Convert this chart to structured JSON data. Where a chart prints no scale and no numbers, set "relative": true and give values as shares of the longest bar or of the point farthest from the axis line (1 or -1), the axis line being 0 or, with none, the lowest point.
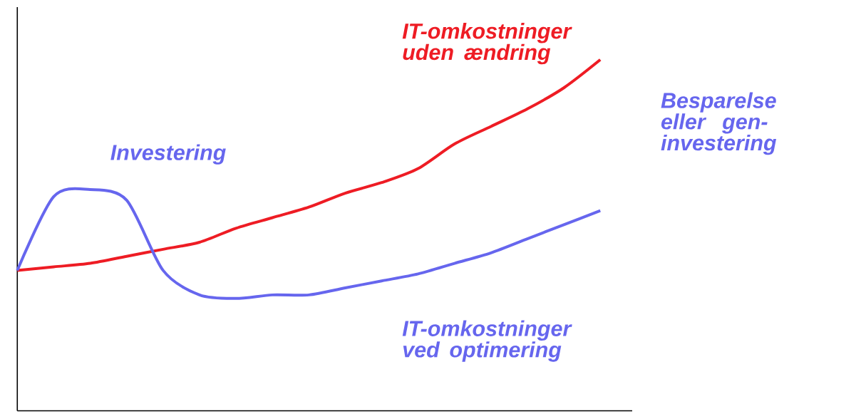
{
  "chart_data": {
    "type": "line",
    "relative": true,
    "categories": [
      null,
      null,
      null,
      null,
      null,
      null,
      null,
      null,
      null,
      null,
      null,
      null,
      null,
      null,
      null,
      null,
      null
    ],
    "series": [
      {
        "name": "IT-omkostninger uden ændring",
        "color": "#ee1c24",
        "values": [
          0.4,
          0.41,
          0.42,
          0.44,
          0.46,
          0.48,
          0.52,
          0.55,
          0.58,
          0.62,
          0.65,
          0.69,
          0.76,
          0.81,
          0.86,
          0.92,
          1.0
        ]
      },
      {
        "name": "IT-omkostninger ved optimering",
        "color": "#6666ee",
        "values": [
          0.4,
          0.61,
          0.63,
          0.6,
          0.4,
          0.33,
          0.32,
          0.33,
          0.33,
          0.35,
          0.37,
          0.39,
          0.42,
          0.45,
          0.49,
          0.53,
          0.57
        ]
      }
    ],
    "annotations": [
      "Investering",
      "Besparelse eller gen-investering"
    ]
  }
}
